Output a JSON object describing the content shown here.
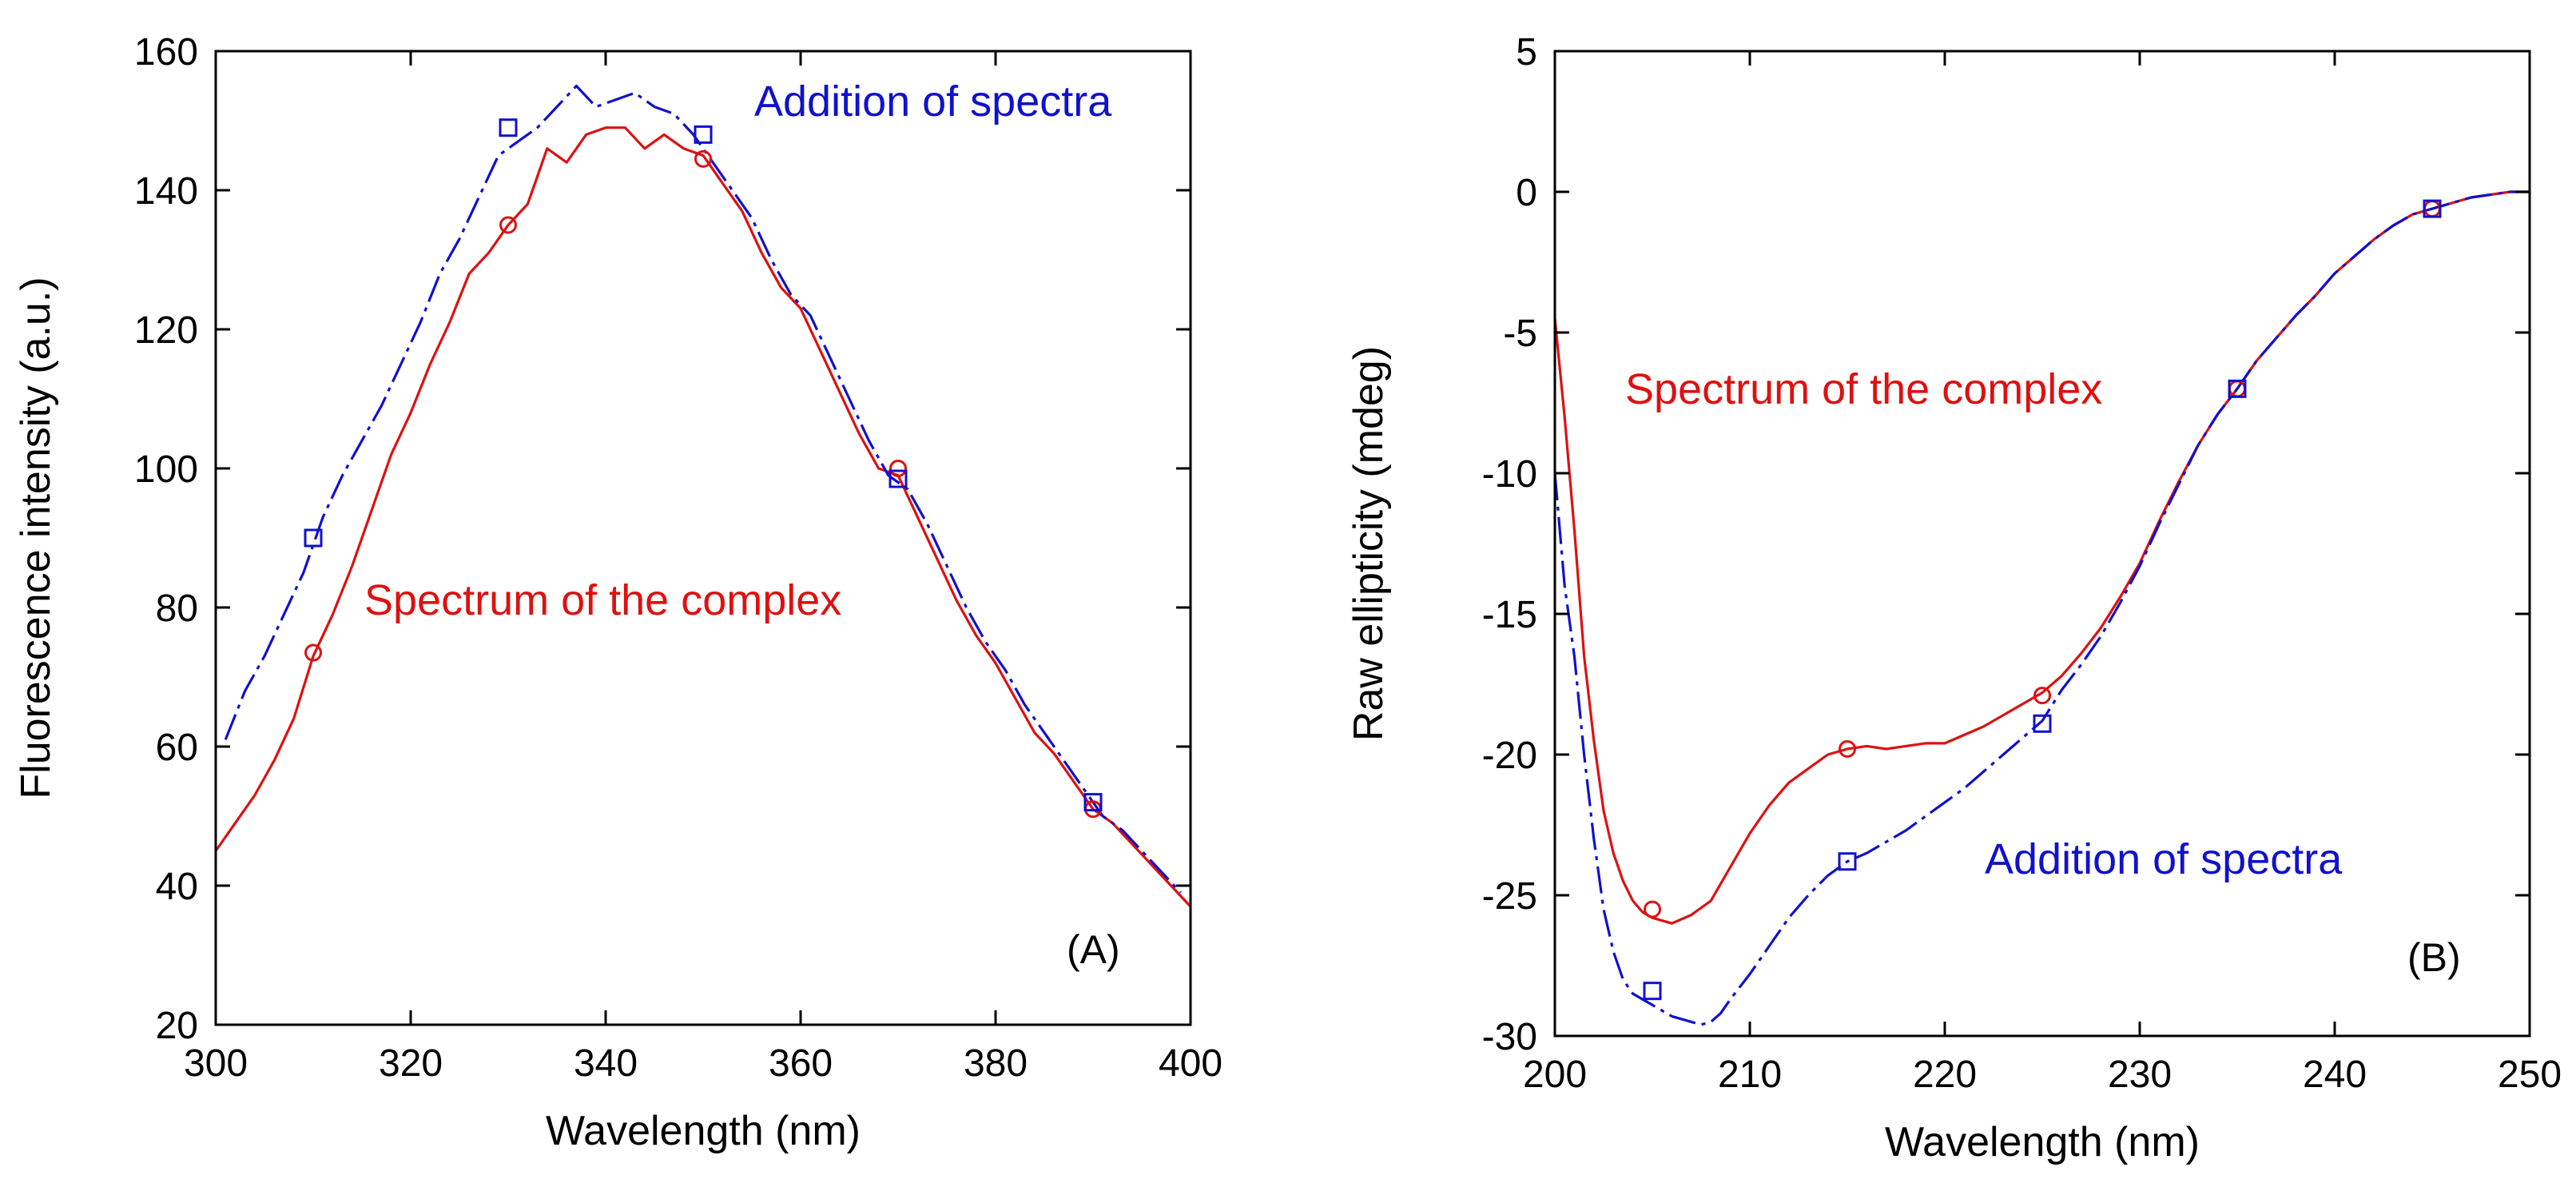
{
  "colors": {
    "complex": "#dd1111",
    "addition": "#1111cc",
    "axis": "#000000",
    "background": "#ffffff"
  },
  "chart_data": [
    {
      "type": "line",
      "panel_label": "(A)",
      "xlabel": "Wavelength (nm)",
      "ylabel": "Fluorescence intensity (a.u.)",
      "xlim": [
        300,
        400
      ],
      "ylim": [
        20,
        160
      ],
      "xticks": [
        300,
        320,
        340,
        360,
        380,
        400
      ],
      "yticks": [
        20,
        40,
        60,
        80,
        100,
        120,
        140,
        160
      ],
      "grid": false,
      "annotations": [
        {
          "text": "Addition of spectra",
          "series": "addition",
          "anchor_x": 348,
          "anchor_y": 152
        },
        {
          "text": "Spectrum of the complex",
          "series": "complex",
          "anchor_x": 327,
          "anchor_y": 77
        }
      ],
      "series": [
        {
          "name": "Spectrum of the complex",
          "key": "complex",
          "style": "solid",
          "marker": "circle",
          "x": [
            300,
            302,
            304,
            306,
            308,
            310,
            312,
            314,
            316,
            318,
            320,
            322,
            324,
            326,
            328,
            330,
            332,
            334,
            336,
            338,
            340,
            342,
            344,
            346,
            348,
            350,
            352,
            354,
            356,
            358,
            360,
            362,
            364,
            366,
            368,
            370,
            372,
            374,
            376,
            378,
            380,
            382,
            384,
            386,
            388,
            390,
            392,
            394,
            396,
            398,
            400
          ],
          "y": [
            45,
            49,
            53,
            58,
            64,
            73,
            79,
            86,
            94,
            102,
            108,
            115,
            121,
            128,
            131,
            135,
            138,
            146,
            144,
            148,
            149,
            149,
            146,
            148,
            146,
            145,
            141,
            137,
            131,
            126,
            123,
            117,
            111,
            105,
            100,
            99,
            93,
            87,
            81,
            76,
            72,
            67,
            62,
            59,
            55,
            51,
            49,
            46,
            43,
            40,
            37
          ],
          "marker_x": [
            310,
            330,
            350,
            370,
            390
          ],
          "marker_y": [
            73.5,
            135,
            144.5,
            100,
            51
          ]
        },
        {
          "name": "Addition of spectra",
          "key": "addition",
          "style": "dashdot",
          "marker": "square",
          "x": [
            301,
            303,
            305,
            307,
            309,
            311,
            313,
            315,
            317,
            319,
            321,
            323,
            325,
            327,
            329,
            331,
            333,
            335,
            337,
            339,
            341,
            343,
            345,
            347,
            349,
            351,
            353,
            355,
            357,
            359,
            361,
            363,
            365,
            367,
            369,
            371,
            373,
            375,
            377,
            379,
            381,
            383,
            385,
            387,
            389,
            391,
            393,
            395,
            397,
            399
          ],
          "y": [
            61,
            68,
            73,
            79,
            85,
            93,
            99,
            104,
            109,
            115,
            121,
            128,
            133,
            139,
            145,
            147,
            149,
            152,
            155,
            152,
            153,
            154,
            152,
            151,
            148,
            144,
            140,
            136,
            130,
            125,
            122,
            116,
            110,
            104,
            99,
            97,
            92,
            86,
            80,
            75,
            71,
            66,
            62,
            58,
            54,
            50,
            48,
            45,
            42,
            39
          ],
          "marker_x": [
            310,
            330,
            350,
            370,
            390
          ],
          "marker_y": [
            90,
            149,
            148,
            98.5,
            52
          ]
        }
      ]
    },
    {
      "type": "line",
      "panel_label": "(B)",
      "xlabel": "Wavelength (nm)",
      "ylabel": "Raw ellipticity (mdeg)",
      "xlim": [
        200,
        250
      ],
      "ylim": [
        -30,
        5
      ],
      "xticks": [
        200,
        210,
        220,
        230,
        240,
        250
      ],
      "yticks": [
        -30,
        -25,
        -20,
        -15,
        -10,
        -5,
        0,
        5
      ],
      "grid": false,
      "annotations": [
        {
          "text": "Spectrum of the complex",
          "series": "complex",
          "anchor_x": 202.2,
          "anchor_y": -7.4
        },
        {
          "text": "Addition of spectra",
          "series": "addition",
          "anchor_x": 226,
          "anchor_y": -24.6
        }
      ],
      "series": [
        {
          "name": "Spectrum of the complex",
          "key": "complex",
          "style": "solid",
          "marker": "circle",
          "x": [
            200,
            200.5,
            201,
            201.5,
            202,
            202.5,
            203,
            203.5,
            204,
            204.5,
            205,
            205.5,
            206,
            207,
            208,
            209,
            210,
            211,
            212,
            213,
            214,
            215,
            216,
            217,
            218,
            219,
            220,
            221,
            222,
            223,
            224,
            225,
            226,
            227,
            228,
            229,
            230,
            231,
            232,
            233,
            234,
            235,
            236,
            237,
            238,
            239,
            240,
            241,
            242,
            243,
            244,
            245,
            246,
            247,
            248,
            249,
            250
          ],
          "y": [
            -4.5,
            -8,
            -12,
            -16.5,
            -19.5,
            -22,
            -23.5,
            -24.5,
            -25.2,
            -25.6,
            -25.8,
            -25.9,
            -26,
            -25.7,
            -25.2,
            -24,
            -22.8,
            -21.8,
            -21,
            -20.5,
            -20,
            -19.8,
            -19.7,
            -19.8,
            -19.7,
            -19.6,
            -19.6,
            -19.3,
            -19,
            -18.6,
            -18.2,
            -17.8,
            -17.2,
            -16.4,
            -15.5,
            -14.4,
            -13.2,
            -11.7,
            -10.3,
            -9,
            -7.9,
            -7,
            -6,
            -5.2,
            -4.4,
            -3.7,
            -2.9,
            -2.3,
            -1.7,
            -1.2,
            -0.8,
            -0.6,
            -0.4,
            -0.2,
            -0.1,
            0,
            0
          ],
          "marker_x": [
            205,
            215,
            225,
            235,
            245
          ],
          "marker_y": [
            -25.5,
            -19.8,
            -17.9,
            -7,
            -0.6
          ]
        },
        {
          "name": "Addition of spectra",
          "key": "addition",
          "style": "dashdot",
          "marker": "square",
          "x": [
            200,
            200.5,
            201,
            201.5,
            202,
            202.5,
            203,
            203.5,
            204,
            204.5,
            205,
            205.5,
            206,
            206.5,
            207,
            207.5,
            208,
            208.5,
            209,
            210,
            211,
            212,
            213,
            214,
            215,
            216,
            217,
            218,
            219,
            220,
            221,
            222,
            223,
            224,
            225,
            226,
            227,
            228,
            229,
            230,
            231,
            232,
            233,
            234,
            235,
            236,
            237,
            238,
            239,
            240,
            241,
            242,
            243,
            244,
            245,
            246,
            247,
            248,
            249,
            250
          ],
          "y": [
            -10,
            -14,
            -16.5,
            -20,
            -23,
            -25.5,
            -27,
            -28,
            -28.5,
            -28.7,
            -28.9,
            -29.1,
            -29.3,
            -29.4,
            -29.5,
            -29.6,
            -29.5,
            -29.2,
            -28.7,
            -27.8,
            -26.8,
            -25.8,
            -25,
            -24.3,
            -23.8,
            -23.5,
            -23.1,
            -22.7,
            -22.2,
            -21.7,
            -21.2,
            -20.6,
            -20,
            -19.4,
            -18.8,
            -17.7,
            -16.8,
            -15.8,
            -14.6,
            -13.3,
            -11.8,
            -10.4,
            -9,
            -7.9,
            -7,
            -6,
            -5.2,
            -4.4,
            -3.7,
            -2.9,
            -2.3,
            -1.7,
            -1.2,
            -0.8,
            -0.6,
            -0.4,
            -0.2,
            -0.1,
            0,
            0
          ],
          "marker_x": [
            205,
            215,
            225,
            235,
            245
          ],
          "marker_y": [
            -28.4,
            -23.8,
            -18.9,
            -7,
            -0.6
          ]
        }
      ]
    }
  ]
}
